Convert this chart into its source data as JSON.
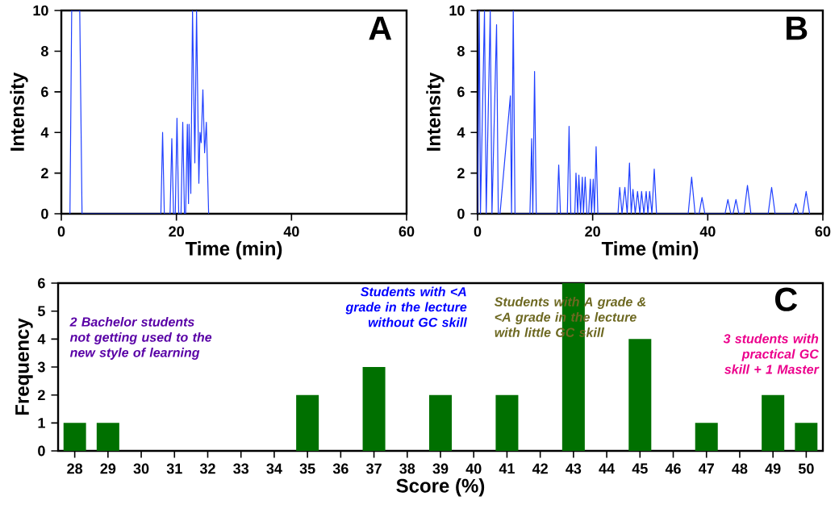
{
  "chart_data": [
    {
      "type": "line",
      "title": "A",
      "xlabel": "Time (min)",
      "ylabel": "Intensity",
      "xlim": [
        0,
        60
      ],
      "ylim": [
        0,
        10
      ],
      "xticks": [
        0,
        20,
        40,
        60
      ],
      "yticks": [
        0,
        2,
        4,
        6,
        8,
        10
      ],
      "marker": "none",
      "line_style": "solid",
      "series": [
        {
          "color": "#2040ff",
          "x": [
            1.5,
            1.8,
            3.2,
            3.6,
            17.3,
            17.6,
            17.9,
            18.9,
            19.2,
            19.5,
            19.8,
            20.1,
            20.4,
            20.8,
            21.1,
            21.4,
            21.6,
            21.9,
            22.1,
            22.2,
            22.5,
            22.8,
            23.2,
            23.5,
            23.9,
            24.1,
            24.3,
            24.6,
            24.9,
            25.2,
            25.6
          ],
          "values": [
            0,
            10,
            10,
            0,
            0,
            4,
            0,
            0,
            3.7,
            0,
            0,
            4.7,
            0,
            0,
            4.5,
            0,
            0,
            4.4,
            0.5,
            4.4,
            1,
            10,
            2.5,
            10,
            1.5,
            4,
            3.5,
            6.1,
            3,
            4.5,
            0
          ]
        }
      ]
    },
    {
      "type": "line",
      "title": "B",
      "xlabel": "Time (min)",
      "ylabel": "Intensity",
      "xlim": [
        0,
        60
      ],
      "ylim": [
        0,
        10
      ],
      "xticks": [
        0,
        20,
        40,
        60
      ],
      "yticks": [
        0,
        2,
        4,
        6,
        8,
        10
      ],
      "marker": "none",
      "line_style": "solid",
      "series": [
        {
          "color": "#2040ff",
          "x": [
            0,
            0.3,
            0.5,
            1.2,
            1.5,
            2.2,
            2.5,
            3.3,
            3.6,
            3.9,
            5.7,
            5.9,
            6.2,
            6.5,
            9.1,
            9.4,
            9.6,
            9.9,
            10.2,
            13.8,
            14.1,
            14.4,
            15.6,
            15.9,
            16.2,
            16.9,
            17.1,
            17.4,
            17.6,
            17.9,
            18.2,
            18.4,
            18.7,
            19.0,
            19.3,
            19.6,
            19.8,
            20.1,
            20.3,
            20.6,
            20.9,
            24.4,
            24.7,
            25.1,
            25.6,
            26.0,
            26.4,
            26.7,
            27.0,
            27.4,
            27.8,
            28.2,
            28.5,
            28.9,
            29.3,
            29.6,
            29.9,
            30.3,
            30.7,
            31.1,
            36.6,
            37.2,
            37.8,
            38.5,
            39.0,
            39.5,
            43.0,
            43.5,
            44.0,
            44.4,
            44.9,
            45.4,
            46.3,
            46.9,
            47.5,
            50.5,
            51.1,
            51.7,
            54.8,
            55.3,
            55.8,
            56.5,
            57.1,
            57.7
          ],
          "values": [
            0,
            10,
            0,
            10,
            0,
            10,
            0,
            9.3,
            0,
            0,
            5.8,
            0,
            10,
            0,
            0,
            3.7,
            0,
            7,
            0,
            0,
            2.4,
            0,
            0,
            4.3,
            0,
            0,
            2,
            0,
            1.9,
            0,
            1.8,
            0,
            1.8,
            0,
            0,
            1.7,
            0,
            1.7,
            0,
            3.3,
            0,
            0,
            1.3,
            0,
            1.3,
            0,
            2.5,
            0,
            1.2,
            0,
            1.1,
            0,
            1.1,
            0,
            1.1,
            0,
            1.1,
            0,
            2.2,
            0,
            0,
            1.8,
            0,
            0,
            0.8,
            0,
            0,
            0.7,
            0,
            0,
            0.7,
            0,
            0,
            1.4,
            0,
            0,
            1.3,
            0,
            0,
            0.5,
            0,
            0,
            1.1,
            0
          ]
        }
      ]
    },
    {
      "type": "bar",
      "title": "C",
      "xlabel": "Score (%)",
      "ylabel": "Frequency",
      "ylim": [
        0,
        6
      ],
      "yticks": [
        0,
        1,
        2,
        3,
        4,
        5,
        6
      ],
      "categories": [
        "28",
        "29",
        "30",
        "31",
        "32",
        "33",
        "34",
        "35",
        "36",
        "37",
        "38",
        "39",
        "40",
        "41",
        "42",
        "43",
        "44",
        "45",
        "46",
        "47",
        "48",
        "49",
        "50"
      ],
      "series": [
        {
          "color": "#007000",
          "values": [
            1,
            1,
            0,
            0,
            0,
            0,
            0,
            2,
            0,
            3,
            0,
            2,
            0,
            2,
            0,
            6,
            0,
            4,
            0,
            1,
            0,
            2,
            1
          ]
        }
      ],
      "annotations": [
        "2 Bachelor students not getting used to the new style of learning",
        "Students with <A grade in the lecture without GC skill",
        "Students with A grade & <A grade in the lecture with little GC skill",
        "3 students with practical GC skill + 1 Master"
      ]
    }
  ]
}
